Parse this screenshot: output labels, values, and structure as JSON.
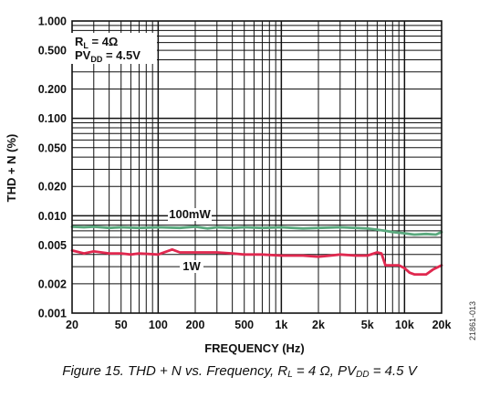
{
  "chart_data": {
    "type": "line",
    "xlabel": "FREQUENCY (Hz)",
    "ylabel": "THD + N (%)",
    "x_scale": "log",
    "y_scale": "log",
    "xlim": [
      20,
      20000
    ],
    "ylim": [
      0.001,
      1
    ],
    "grid": true,
    "x_ticks": [
      {
        "value": 20,
        "label": "20"
      },
      {
        "value": 50,
        "label": "50"
      },
      {
        "value": 100,
        "label": "100"
      },
      {
        "value": 200,
        "label": "200"
      },
      {
        "value": 500,
        "label": "500"
      },
      {
        "value": 1000,
        "label": "1k"
      },
      {
        "value": 2000,
        "label": "2k"
      },
      {
        "value": 5000,
        "label": "5k"
      },
      {
        "value": 10000,
        "label": "10k"
      },
      {
        "value": 20000,
        "label": "20k"
      }
    ],
    "y_ticks": [
      {
        "value": 1,
        "label": "1.000"
      },
      {
        "value": 0.5,
        "label": "0.500"
      },
      {
        "value": 0.2,
        "label": "0.200"
      },
      {
        "value": 0.1,
        "label": "0.100"
      },
      {
        "value": 0.05,
        "label": "0.050"
      },
      {
        "value": 0.02,
        "label": "0.020"
      },
      {
        "value": 0.01,
        "label": "0.010"
      },
      {
        "value": 0.005,
        "label": "0.005"
      },
      {
        "value": 0.002,
        "label": "0.002"
      },
      {
        "value": 0.001,
        "label": "0.001"
      }
    ],
    "conditions": {
      "rl_prefix": "R",
      "rl_sub": "L",
      "rl_value": " = 4Ω",
      "pvdd_prefix": "PV",
      "pvdd_sub": "DD",
      "pvdd_value": " = 4.5V"
    },
    "series": [
      {
        "name": "100mW",
        "color": "#5aa97e",
        "x": [
          20,
          25,
          30,
          40,
          50,
          70,
          100,
          150,
          200,
          250,
          300,
          400,
          500,
          700,
          1000,
          1500,
          2000,
          3000,
          4000,
          5000,
          6000,
          7000,
          8000,
          10000,
          12000,
          15000,
          18000,
          20000
        ],
        "y": [
          0.0077,
          0.0076,
          0.0077,
          0.0075,
          0.0076,
          0.0075,
          0.0076,
          0.0075,
          0.0077,
          0.0074,
          0.0076,
          0.0075,
          0.0076,
          0.0075,
          0.0076,
          0.0074,
          0.0075,
          0.0076,
          0.0075,
          0.0074,
          0.0072,
          0.007,
          0.0068,
          0.0066,
          0.0064,
          0.0065,
          0.0064,
          0.0068
        ]
      },
      {
        "name": "1W",
        "color": "#e0284f",
        "x": [
          20,
          25,
          30,
          40,
          50,
          60,
          70,
          100,
          130,
          150,
          200,
          300,
          400,
          500,
          700,
          1000,
          1500,
          2000,
          2500,
          3000,
          4000,
          5000,
          6000,
          6500,
          7000,
          8000,
          9000,
          10000,
          11000,
          12000,
          15000,
          17000,
          20000
        ],
        "y": [
          0.0044,
          0.0041,
          0.0043,
          0.0041,
          0.0041,
          0.004,
          0.0041,
          0.004,
          0.0045,
          0.0042,
          0.0042,
          0.0042,
          0.0041,
          0.004,
          0.004,
          0.0039,
          0.0039,
          0.0038,
          0.0039,
          0.004,
          0.0039,
          0.0039,
          0.0042,
          0.0041,
          0.0031,
          0.0031,
          0.0031,
          0.0029,
          0.0026,
          0.0025,
          0.0025,
          0.0028,
          0.0031
        ]
      }
    ]
  },
  "caption": {
    "prefix": "Figure 15. THD + N vs. Frequency, R",
    "rl_sub": "L",
    "middle": " = 4 Ω, PV",
    "pvdd_sub": "DD",
    "suffix": " = 4.5 V"
  },
  "figure_id": "21861-013"
}
